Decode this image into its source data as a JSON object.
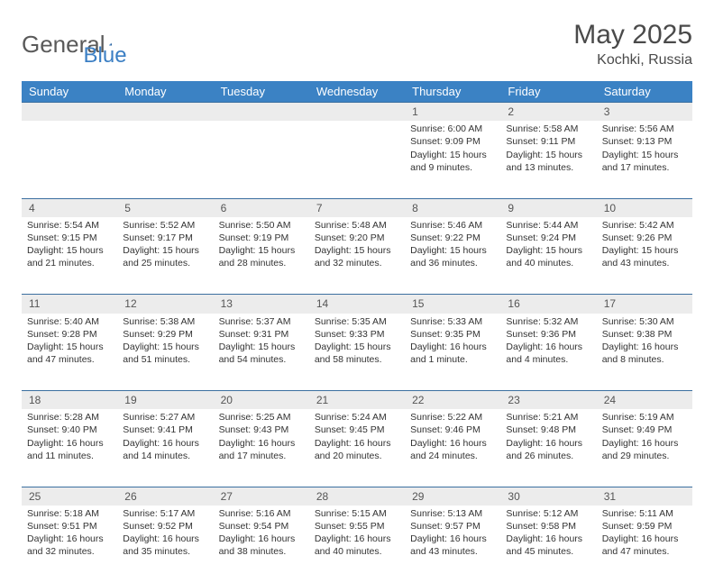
{
  "brand": {
    "part1": "General",
    "part2": "Blue"
  },
  "title": "May 2025",
  "location": "Kochki, Russia",
  "colors": {
    "header_bg": "#3b82c4",
    "header_text": "#ffffff",
    "row_sep": "#3b6fa0",
    "daynum_bg": "#ececec",
    "page_bg": "#ffffff",
    "text": "#333333",
    "brand_gray": "#5a5a5a",
    "brand_blue": "#3b7fc4"
  },
  "weekdays": [
    "Sunday",
    "Monday",
    "Tuesday",
    "Wednesday",
    "Thursday",
    "Friday",
    "Saturday"
  ],
  "weeks": [
    [
      null,
      null,
      null,
      null,
      {
        "n": "1",
        "sr": "6:00 AM",
        "ss": "9:09 PM",
        "dl": "15 hours and 9 minutes."
      },
      {
        "n": "2",
        "sr": "5:58 AM",
        "ss": "9:11 PM",
        "dl": "15 hours and 13 minutes."
      },
      {
        "n": "3",
        "sr": "5:56 AM",
        "ss": "9:13 PM",
        "dl": "15 hours and 17 minutes."
      }
    ],
    [
      {
        "n": "4",
        "sr": "5:54 AM",
        "ss": "9:15 PM",
        "dl": "15 hours and 21 minutes."
      },
      {
        "n": "5",
        "sr": "5:52 AM",
        "ss": "9:17 PM",
        "dl": "15 hours and 25 minutes."
      },
      {
        "n": "6",
        "sr": "5:50 AM",
        "ss": "9:19 PM",
        "dl": "15 hours and 28 minutes."
      },
      {
        "n": "7",
        "sr": "5:48 AM",
        "ss": "9:20 PM",
        "dl": "15 hours and 32 minutes."
      },
      {
        "n": "8",
        "sr": "5:46 AM",
        "ss": "9:22 PM",
        "dl": "15 hours and 36 minutes."
      },
      {
        "n": "9",
        "sr": "5:44 AM",
        "ss": "9:24 PM",
        "dl": "15 hours and 40 minutes."
      },
      {
        "n": "10",
        "sr": "5:42 AM",
        "ss": "9:26 PM",
        "dl": "15 hours and 43 minutes."
      }
    ],
    [
      {
        "n": "11",
        "sr": "5:40 AM",
        "ss": "9:28 PM",
        "dl": "15 hours and 47 minutes."
      },
      {
        "n": "12",
        "sr": "5:38 AM",
        "ss": "9:29 PM",
        "dl": "15 hours and 51 minutes."
      },
      {
        "n": "13",
        "sr": "5:37 AM",
        "ss": "9:31 PM",
        "dl": "15 hours and 54 minutes."
      },
      {
        "n": "14",
        "sr": "5:35 AM",
        "ss": "9:33 PM",
        "dl": "15 hours and 58 minutes."
      },
      {
        "n": "15",
        "sr": "5:33 AM",
        "ss": "9:35 PM",
        "dl": "16 hours and 1 minute."
      },
      {
        "n": "16",
        "sr": "5:32 AM",
        "ss": "9:36 PM",
        "dl": "16 hours and 4 minutes."
      },
      {
        "n": "17",
        "sr": "5:30 AM",
        "ss": "9:38 PM",
        "dl": "16 hours and 8 minutes."
      }
    ],
    [
      {
        "n": "18",
        "sr": "5:28 AM",
        "ss": "9:40 PM",
        "dl": "16 hours and 11 minutes."
      },
      {
        "n": "19",
        "sr": "5:27 AM",
        "ss": "9:41 PM",
        "dl": "16 hours and 14 minutes."
      },
      {
        "n": "20",
        "sr": "5:25 AM",
        "ss": "9:43 PM",
        "dl": "16 hours and 17 minutes."
      },
      {
        "n": "21",
        "sr": "5:24 AM",
        "ss": "9:45 PM",
        "dl": "16 hours and 20 minutes."
      },
      {
        "n": "22",
        "sr": "5:22 AM",
        "ss": "9:46 PM",
        "dl": "16 hours and 24 minutes."
      },
      {
        "n": "23",
        "sr": "5:21 AM",
        "ss": "9:48 PM",
        "dl": "16 hours and 26 minutes."
      },
      {
        "n": "24",
        "sr": "5:19 AM",
        "ss": "9:49 PM",
        "dl": "16 hours and 29 minutes."
      }
    ],
    [
      {
        "n": "25",
        "sr": "5:18 AM",
        "ss": "9:51 PM",
        "dl": "16 hours and 32 minutes."
      },
      {
        "n": "26",
        "sr": "5:17 AM",
        "ss": "9:52 PM",
        "dl": "16 hours and 35 minutes."
      },
      {
        "n": "27",
        "sr": "5:16 AM",
        "ss": "9:54 PM",
        "dl": "16 hours and 38 minutes."
      },
      {
        "n": "28",
        "sr": "5:15 AM",
        "ss": "9:55 PM",
        "dl": "16 hours and 40 minutes."
      },
      {
        "n": "29",
        "sr": "5:13 AM",
        "ss": "9:57 PM",
        "dl": "16 hours and 43 minutes."
      },
      {
        "n": "30",
        "sr": "5:12 AM",
        "ss": "9:58 PM",
        "dl": "16 hours and 45 minutes."
      },
      {
        "n": "31",
        "sr": "5:11 AM",
        "ss": "9:59 PM",
        "dl": "16 hours and 47 minutes."
      }
    ]
  ],
  "labels": {
    "sunrise": "Sunrise:",
    "sunset": "Sunset:",
    "daylight": "Daylight:"
  }
}
